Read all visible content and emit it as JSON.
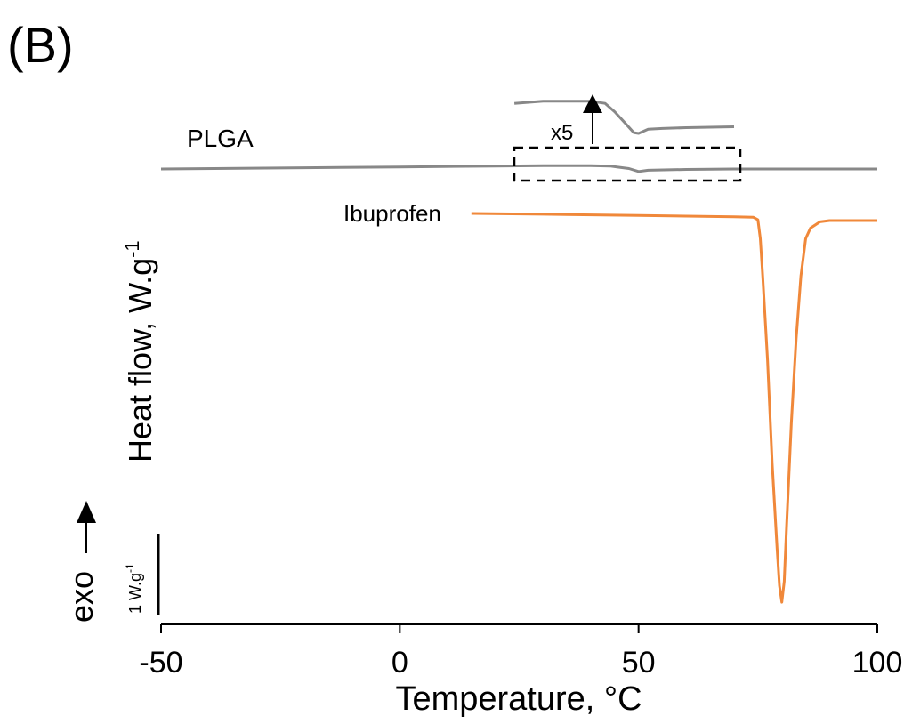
{
  "panel_label": "(B)",
  "chart_data": {
    "type": "line",
    "title": "",
    "xlabel": "Temperature, °C",
    "ylabel": "Heat flow, W.g",
    "ylabel_superscript": "-1",
    "xlim": [
      -50,
      100
    ],
    "xticks": [
      -50,
      0,
      50,
      100
    ],
    "grid": false,
    "series": [
      {
        "name": "PLGA",
        "color": "#888888",
        "x": [
          -50,
          -20,
          0,
          20,
          30,
          40,
          44,
          46,
          48,
          50,
          52,
          60,
          70,
          80,
          90,
          100
        ],
        "y": [
          0.0,
          0.03,
          0.05,
          0.07,
          0.08,
          0.08,
          0.07,
          0.04,
          0.01,
          -0.06,
          -0.03,
          -0.01,
          0.0,
          0.0,
          0.0,
          0.0
        ]
      },
      {
        "name": "Ibuprofen",
        "color": "#f0883a",
        "x": [
          15,
          30,
          50,
          70,
          74,
          75,
          75.5,
          76,
          77,
          78,
          79,
          79.5,
          80,
          80.5,
          81,
          82,
          83,
          84,
          85,
          86,
          88,
          90,
          95,
          100
        ],
        "y": [
          0.0,
          -0.02,
          -0.05,
          -0.08,
          -0.09,
          -0.15,
          -0.6,
          -1.5,
          -3.5,
          -6.0,
          -8.0,
          -8.9,
          -9.3,
          -8.8,
          -7.5,
          -5.0,
          -3.0,
          -1.5,
          -0.6,
          -0.35,
          -0.2,
          -0.17,
          -0.17,
          -0.17
        ]
      },
      {
        "name": "",
        "color": "#888888",
        "x": [
          24,
          30,
          40,
          43,
          45,
          47,
          49,
          50,
          52,
          55,
          60,
          70
        ],
        "y": [
          0.4,
          0.45,
          0.45,
          0.4,
          0.2,
          -0.05,
          -0.3,
          -0.32,
          -0.22,
          -0.2,
          -0.18,
          -0.16
        ]
      }
    ],
    "inset_note": "x5",
    "exo_label": "exo",
    "scale_bar_label": "1 W.g",
    "scale_bar_superscript": "-1"
  }
}
